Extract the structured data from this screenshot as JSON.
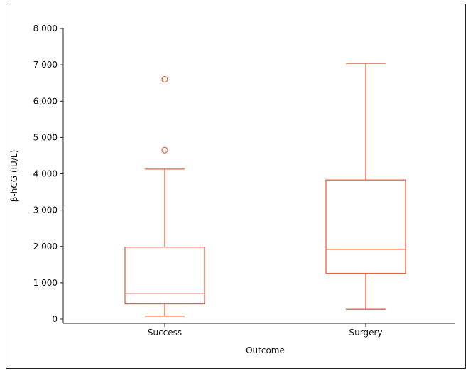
{
  "chart_data": {
    "type": "boxplot",
    "title": "",
    "xlabel": "Outcome",
    "ylabel": "β-hCG (IU/L)",
    "ylim": [
      0,
      8000
    ],
    "yticks": [
      0,
      1000,
      2000,
      3000,
      4000,
      5000,
      6000,
      7000,
      8000
    ],
    "ytick_labels": [
      "0",
      "1 000",
      "2 000",
      "3 000",
      "4 000",
      "5 000",
      "6 000",
      "7 000",
      "8 000"
    ],
    "categories": [
      "Success",
      "Surgery"
    ],
    "boxes": [
      {
        "category": "Success",
        "whisker_low": 80,
        "q1": 420,
        "median": 700,
        "q3": 1980,
        "whisker_high": 4130,
        "outliers": [
          4650,
          6600
        ]
      },
      {
        "category": "Surgery",
        "whisker_low": 270,
        "q1": 1260,
        "median": 1920,
        "q3": 3830,
        "whisker_high": 7040,
        "outliers": []
      }
    ],
    "color": "#e8603c",
    "grid": false
  }
}
